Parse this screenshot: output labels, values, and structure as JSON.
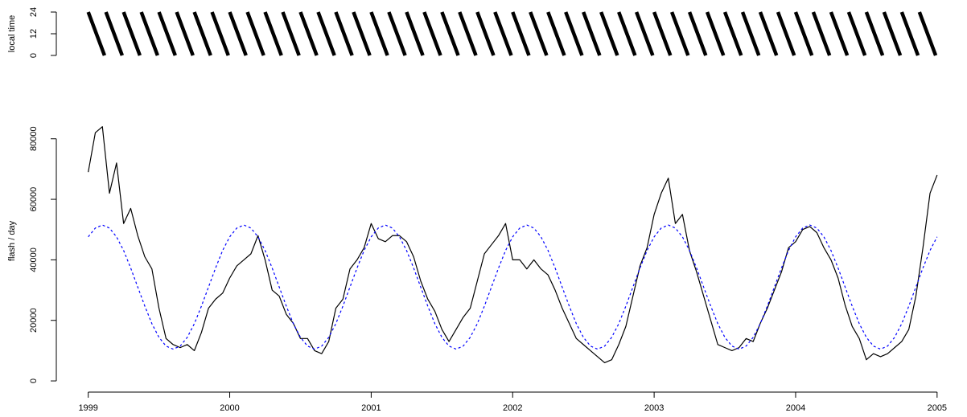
{
  "chart_data": [
    {
      "type": "line",
      "ylabel": "local time",
      "xlim": [
        1998.78,
        2005.2
      ],
      "ylim": [
        0,
        24
      ],
      "yticks": [
        0,
        12,
        24
      ],
      "x": [
        1999,
        1999.115,
        1999.115,
        1999.125,
        1999.24,
        1999.24,
        1999.25,
        1999.365,
        1999.365,
        1999.375,
        1999.49,
        1999.49,
        1999.5,
        1999.615,
        1999.615,
        1999.625,
        1999.74,
        1999.74,
        1999.75,
        1999.865,
        1999.865,
        1999.875,
        1999.99,
        1999.99,
        2000,
        2000.115,
        2000.115,
        2000.125,
        2000.24,
        2000.24,
        2000.25,
        2000.365,
        2000.365,
        2000.375,
        2000.49,
        2000.49,
        2000.5,
        2000.615,
        2000.615,
        2000.625,
        2000.74,
        2000.74,
        2000.75,
        2000.865,
        2000.865,
        2000.875,
        2000.99,
        2000.99,
        2001,
        2001.115,
        2001.115,
        2001.125,
        2001.24,
        2001.24,
        2001.25,
        2001.365,
        2001.365,
        2001.375,
        2001.49,
        2001.49,
        2001.5,
        2001.615,
        2001.615,
        2001.625,
        2001.74,
        2001.74,
        2001.75,
        2001.865,
        2001.865,
        2001.875,
        2001.99,
        2001.99,
        2002,
        2002.115,
        2002.115,
        2002.125,
        2002.24,
        2002.24,
        2002.25,
        2002.365,
        2002.365,
        2002.375,
        2002.49,
        2002.49,
        2002.5,
        2002.615,
        2002.615,
        2002.625,
        2002.74,
        2002.74,
        2002.75,
        2002.865,
        2002.865,
        2002.875,
        2002.99,
        2002.99,
        2003,
        2003.115,
        2003.115,
        2003.125,
        2003.24,
        2003.24,
        2003.25,
        2003.365,
        2003.365,
        2003.375,
        2003.49,
        2003.49,
        2003.5,
        2003.615,
        2003.615,
        2003.625,
        2003.74,
        2003.74,
        2003.75,
        2003.865,
        2003.865,
        2003.875,
        2003.99,
        2003.99,
        2004,
        2004.115,
        2004.115,
        2004.125,
        2004.24,
        2004.24,
        2004.25,
        2004.365,
        2004.365,
        2004.375,
        2004.49,
        2004.49,
        2004.5,
        2004.615,
        2004.615,
        2004.625,
        2004.74,
        2004.74,
        2004.75,
        2004.865,
        2004.865,
        2004.875,
        2004.99
      ],
      "series": [
        {
          "color": "#000000",
          "linestyle": "solid",
          "values": [
            24,
            0,
            null,
            24,
            0,
            null,
            24,
            0,
            null,
            24,
            0,
            null,
            24,
            0,
            null,
            24,
            0,
            null,
            24,
            0,
            null,
            24,
            0,
            null,
            24,
            0,
            null,
            24,
            0,
            null,
            24,
            0,
            null,
            24,
            0,
            null,
            24,
            0,
            null,
            24,
            0,
            null,
            24,
            0,
            null,
            24,
            0,
            null,
            24,
            0,
            null,
            24,
            0,
            null,
            24,
            0,
            null,
            24,
            0,
            null,
            24,
            0,
            null,
            24,
            0,
            null,
            24,
            0,
            null,
            24,
            0,
            null,
            24,
            0,
            null,
            24,
            0,
            null,
            24,
            0,
            null,
            24,
            0,
            null,
            24,
            0,
            null,
            24,
            0,
            null,
            24,
            0,
            null,
            24,
            0,
            null,
            24,
            0,
            null,
            24,
            0,
            null,
            24,
            0,
            null,
            24,
            0,
            null,
            24,
            0,
            null,
            24,
            0,
            null,
            24,
            0,
            null,
            24,
            0,
            null,
            24,
            0,
            null,
            24,
            0,
            null,
            24,
            0,
            null,
            24,
            0,
            null,
            24,
            0,
            null,
            24,
            0,
            null,
            24,
            0,
            null,
            24,
            0
          ]
        }
      ]
    },
    {
      "type": "line",
      "ylabel": "flash / day",
      "xlim": [
        1998.78,
        2005.2
      ],
      "xticks": [
        1999,
        2000,
        2001,
        2002,
        2003,
        2004,
        2005
      ],
      "ylim": [
        -3700,
        94000
      ],
      "yticks": [
        0,
        20000,
        40000,
        60000,
        80000
      ],
      "x": [
        1999,
        1999.05,
        1999.1,
        1999.15,
        1999.2,
        1999.25,
        1999.3,
        1999.35,
        1999.4,
        1999.45,
        1999.5,
        1999.55,
        1999.6,
        1999.65,
        1999.7,
        1999.75,
        1999.8,
        1999.85,
        1999.9,
        1999.95,
        2000,
        2000.05,
        2000.1,
        2000.15,
        2000.2,
        2000.25,
        2000.3,
        2000.35,
        2000.4,
        2000.45,
        2000.5,
        2000.55,
        2000.6,
        2000.65,
        2000.7,
        2000.75,
        2000.8,
        2000.85,
        2000.9,
        2000.95,
        2001,
        2001.05,
        2001.1,
        2001.15,
        2001.2,
        2001.25,
        2001.3,
        2001.35,
        2001.4,
        2001.45,
        2001.5,
        2001.55,
        2001.6,
        2001.65,
        2001.7,
        2001.75,
        2001.8,
        2001.85,
        2001.9,
        2001.95,
        2002,
        2002.05,
        2002.1,
        2002.15,
        2002.2,
        2002.25,
        2002.3,
        2002.35,
        2002.4,
        2002.45,
        2002.5,
        2002.55,
        2002.6,
        2002.65,
        2002.7,
        2002.75,
        2002.8,
        2002.85,
        2002.9,
        2002.95,
        2003,
        2003.05,
        2003.1,
        2003.15,
        2003.2,
        2003.25,
        2003.3,
        2003.35,
        2003.4,
        2003.45,
        2003.5,
        2003.55,
        2003.6,
        2003.65,
        2003.7,
        2003.75,
        2003.8,
        2003.85,
        2003.9,
        2003.95,
        2004,
        2004.05,
        2004.1,
        2004.15,
        2004.2,
        2004.25,
        2004.3,
        2004.35,
        2004.4,
        2004.45,
        2004.5,
        2004.55,
        2004.6,
        2004.65,
        2004.7,
        2004.75,
        2004.8,
        2004.85,
        2004.9,
        2004.95,
        2005
      ],
      "series": [
        {
          "color": "#000000",
          "linestyle": "solid",
          "values": [
            69000,
            82000,
            84000,
            62000,
            72000,
            52000,
            57000,
            48000,
            41000,
            37000,
            24000,
            14000,
            12000,
            11000,
            12000,
            10000,
            16000,
            24000,
            27000,
            29000,
            34000,
            38000,
            40000,
            42000,
            48000,
            40000,
            30000,
            28000,
            22000,
            19000,
            14000,
            14000,
            10000,
            9000,
            13000,
            24000,
            27000,
            37000,
            40000,
            44000,
            52000,
            47000,
            46000,
            48000,
            48000,
            46000,
            41000,
            33000,
            27000,
            23000,
            17000,
            13000,
            17000,
            21000,
            24000,
            33000,
            42000,
            45000,
            48000,
            52000,
            40000,
            40000,
            37000,
            40000,
            37000,
            35000,
            30000,
            24000,
            19000,
            14000,
            12000,
            10000,
            8000,
            6000,
            7000,
            12000,
            18000,
            28000,
            38000,
            44000,
            55000,
            62000,
            67000,
            52000,
            55000,
            43000,
            36000,
            28000,
            20000,
            12000,
            11000,
            10000,
            11000,
            14000,
            13000,
            19000,
            24000,
            30000,
            36000,
            44000,
            46000,
            50000,
            51000,
            49000,
            44000,
            40000,
            34000,
            25000,
            18000,
            14000,
            7000,
            9000,
            8000,
            9000,
            11000,
            13000,
            17000,
            28000,
            44000,
            62000,
            68000
          ]
        },
        {
          "color": "#0000ff",
          "linestyle": "dashed",
          "values": [
            47600,
            50500,
            51500,
            50500,
            47600,
            43100,
            37300,
            31000,
            24700,
            18900,
            14400,
            11500,
            10500,
            11500,
            14400,
            18900,
            24700,
            31000,
            37300,
            43100,
            47600,
            50500,
            51500,
            50500,
            47600,
            43100,
            37300,
            31000,
            24700,
            18900,
            14400,
            11500,
            10500,
            11500,
            14400,
            18900,
            24700,
            31000,
            37300,
            43100,
            47600,
            50500,
            51500,
            50500,
            47600,
            43100,
            37300,
            31000,
            24700,
            18900,
            14400,
            11500,
            10500,
            11500,
            14400,
            18900,
            24700,
            31000,
            37300,
            43100,
            47600,
            50500,
            51500,
            50500,
            47600,
            43100,
            37300,
            31000,
            24700,
            18900,
            14400,
            11500,
            10500,
            11500,
            14400,
            18900,
            24700,
            31000,
            37300,
            43100,
            47600,
            50500,
            51500,
            50500,
            47600,
            43100,
            37300,
            31000,
            24700,
            18900,
            14400,
            11500,
            10500,
            11500,
            14400,
            18900,
            24700,
            31000,
            37300,
            43100,
            47600,
            50500,
            51500,
            50500,
            47600,
            43100,
            37300,
            31000,
            24700,
            18900,
            14400,
            11500,
            10500,
            11500,
            14400,
            18900,
            24700,
            31000,
            37300,
            43100,
            47600
          ]
        }
      ]
    }
  ]
}
